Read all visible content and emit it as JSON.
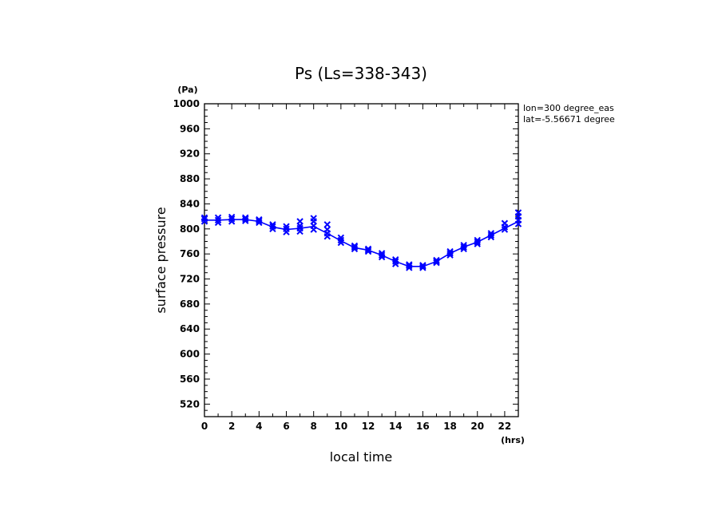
{
  "chart_data": {
    "type": "line",
    "title": "Ps (Ls=338-343)",
    "xlabel": "local time",
    "ylabel": "surface pressure",
    "xunit": "(hrs)",
    "yunit": "(Pa)",
    "xlim": [
      0,
      23
    ],
    "ylim": [
      500,
      1000
    ],
    "xticks": [
      0,
      2,
      4,
      6,
      8,
      10,
      12,
      14,
      16,
      18,
      20,
      22
    ],
    "yticks": [
      520,
      560,
      600,
      640,
      680,
      720,
      760,
      800,
      840,
      880,
      920,
      960,
      1000
    ],
    "annotations": [
      "lon=300 degree_eas",
      "lat=-5.56671 degree"
    ],
    "grid": false,
    "color": "#0000ff",
    "series": [
      {
        "x": [
          0,
          1,
          2,
          3,
          4,
          5,
          6,
          7,
          8,
          9,
          10,
          11,
          12,
          13,
          14,
          15,
          16,
          17,
          18,
          19,
          20,
          21,
          22,
          23
        ],
        "y": [
          814,
          814,
          815,
          815,
          812,
          803,
          799,
          801,
          804,
          793,
          781,
          770,
          766,
          758,
          748,
          740,
          740,
          748,
          761,
          771,
          779,
          790,
          801,
          812
        ]
      }
    ],
    "markers": [
      {
        "x": 0,
        "y": [
          812,
          816,
          818
        ]
      },
      {
        "x": 1,
        "y": [
          810,
          814,
          818
        ]
      },
      {
        "x": 2,
        "y": [
          812,
          816,
          819
        ]
      },
      {
        "x": 3,
        "y": [
          813,
          816,
          818
        ]
      },
      {
        "x": 4,
        "y": [
          810,
          813,
          815
        ]
      },
      {
        "x": 5,
        "y": [
          800,
          804,
          807
        ]
      },
      {
        "x": 6,
        "y": [
          795,
          800,
          804
        ]
      },
      {
        "x": 7,
        "y": [
          796,
          801,
          805,
          812
        ]
      },
      {
        "x": 8,
        "y": [
          799,
          805,
          812,
          817
        ]
      },
      {
        "x": 9,
        "y": [
          788,
          793,
          799,
          807
        ]
      },
      {
        "x": 10,
        "y": [
          778,
          782,
          786
        ]
      },
      {
        "x": 11,
        "y": [
          768,
          771,
          773
        ]
      },
      {
        "x": 12,
        "y": [
          764,
          766,
          768
        ]
      },
      {
        "x": 13,
        "y": [
          755,
          758,
          761
        ]
      },
      {
        "x": 14,
        "y": [
          744,
          748,
          751
        ]
      },
      {
        "x": 15,
        "y": [
          738,
          741,
          743
        ]
      },
      {
        "x": 16,
        "y": [
          738,
          740,
          742
        ]
      },
      {
        "x": 17,
        "y": [
          746,
          748,
          750
        ]
      },
      {
        "x": 18,
        "y": [
          758,
          761,
          764
        ]
      },
      {
        "x": 19,
        "y": [
          768,
          771,
          774
        ]
      },
      {
        "x": 20,
        "y": [
          776,
          779,
          782
        ]
      },
      {
        "x": 21,
        "y": [
          787,
          790,
          793
        ]
      },
      {
        "x": 22,
        "y": [
          799,
          803,
          809
        ]
      },
      {
        "x": 23,
        "y": [
          808,
          814,
          820,
          826
        ]
      }
    ]
  }
}
